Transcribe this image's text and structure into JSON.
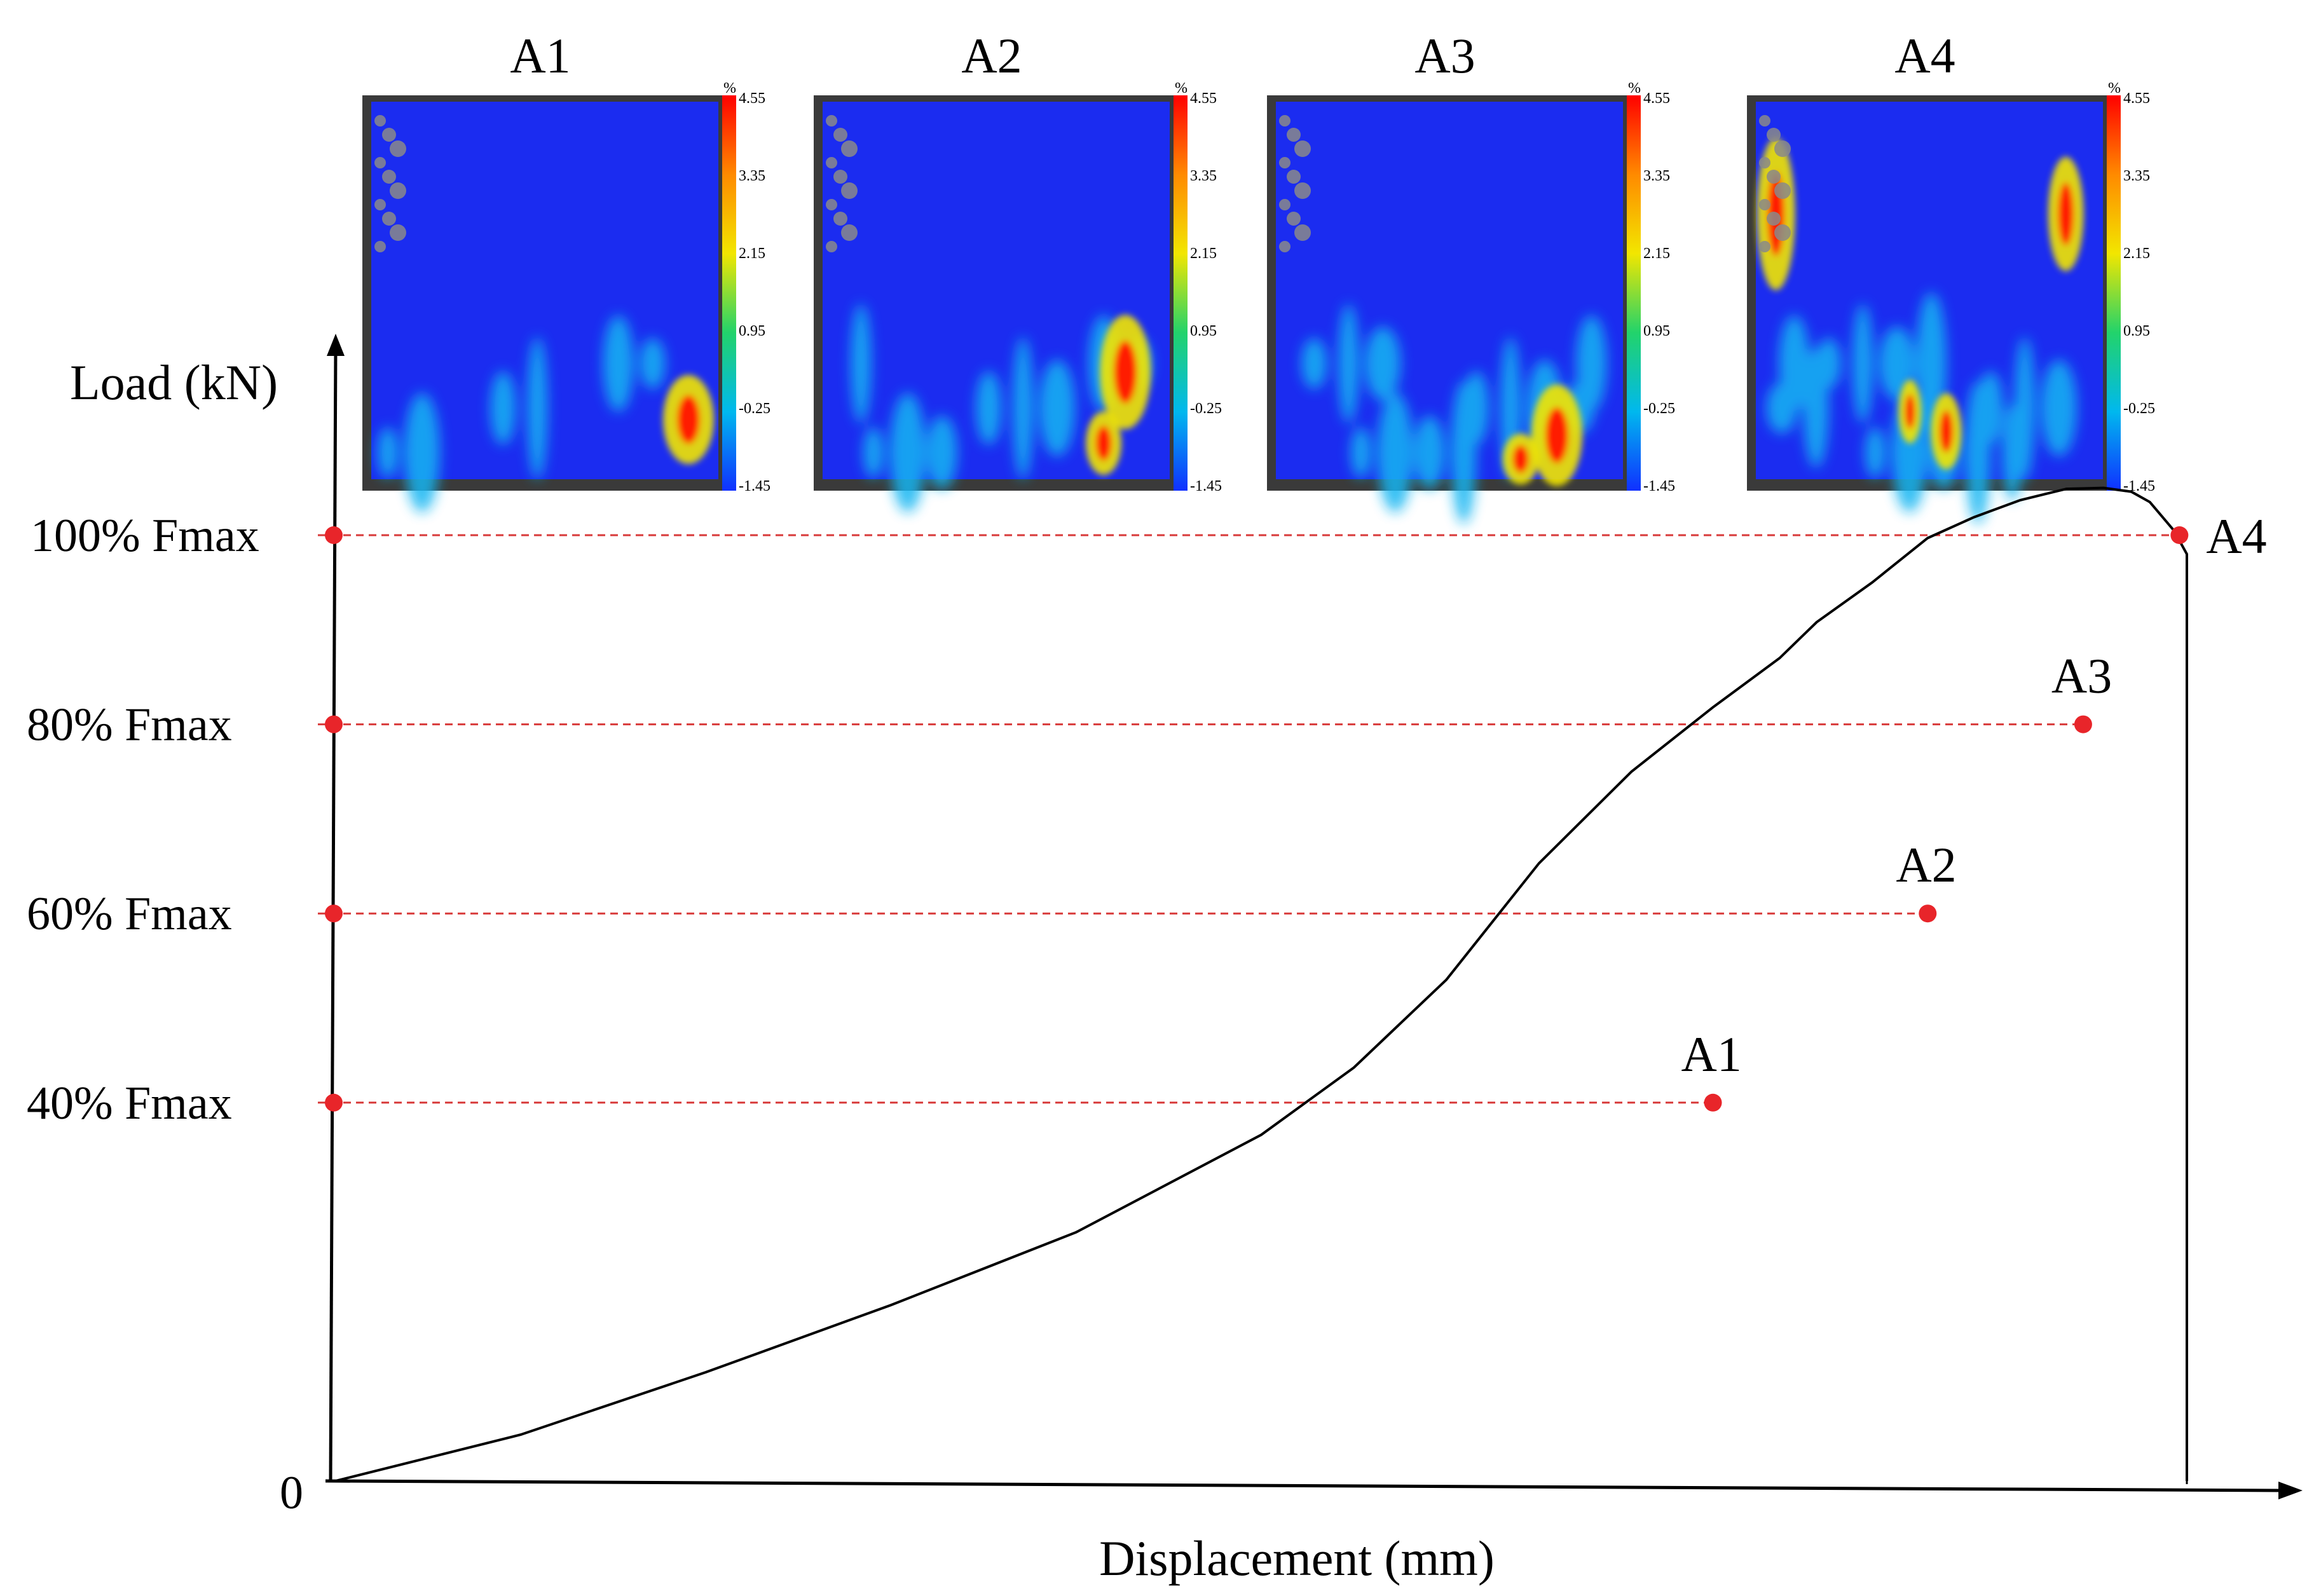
{
  "chart_data": {
    "type": "line",
    "xlabel": "Displacement (mm)",
    "ylabel": "Load (kN)",
    "origin_label": "0",
    "y_ticks": [
      "100% Fmax",
      "80% Fmax",
      "60% Fmax",
      "40% Fmax"
    ],
    "y_tick_values": [
      100,
      80,
      60,
      40
    ],
    "ylim": [
      0,
      115
    ],
    "xlim": [
      0,
      105
    ],
    "series": [
      {
        "x": [
          0,
          10,
          20,
          30,
          40,
          50,
          55,
          60,
          65,
          70,
          74.4,
          78,
          80,
          83,
          86,
          88.5,
          91,
          93.5,
          95.5,
          97,
          98,
          99.3,
          100
        ],
        "y": [
          0,
          4.9,
          11.5,
          18.6,
          26.3,
          36.6,
          43.7,
          53.0,
          65.3,
          75.0,
          81.8,
          87.0,
          90.8,
          95.0,
          99.7,
          101.9,
          103.7,
          104.9,
          105.0,
          104.6,
          103.5,
          100.5,
          98.0
        ]
      }
    ],
    "points": [
      {
        "label": "A1",
        "x": 74.4,
        "y": 40
      },
      {
        "label": "A2",
        "x": 86.0,
        "y": 60
      },
      {
        "label": "A3",
        "x": 94.4,
        "y": 80
      },
      {
        "label": "A4",
        "x": 99.6,
        "y": 100
      }
    ],
    "marker_color": "#e8252a",
    "guide_color": "#d83a3a",
    "strain_maps": {
      "unit": "%",
      "colorbar_ticks": [
        "4.55",
        "3.35",
        "2.15",
        "0.95",
        "-0.25",
        "-1.45"
      ],
      "panels": [
        "A1",
        "A2",
        "A3",
        "A4"
      ]
    }
  }
}
